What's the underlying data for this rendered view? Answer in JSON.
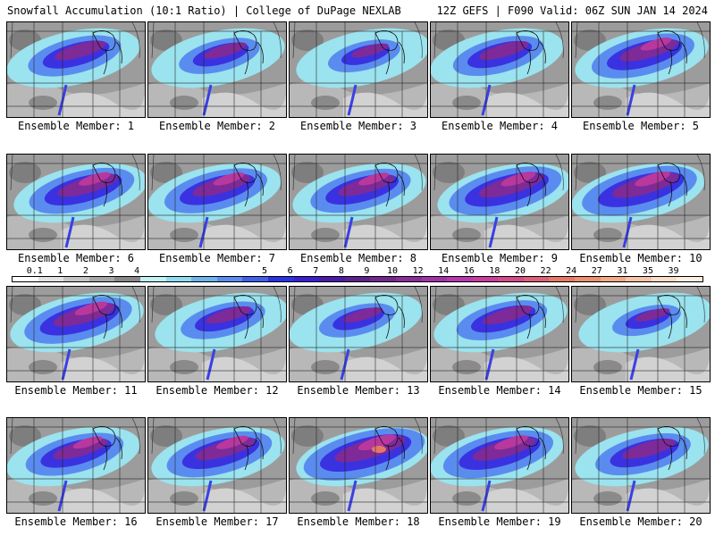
{
  "header": {
    "title_left": "Snowfall Accumulation (10:1 Ratio) | College of DuPage NEXLAB",
    "title_right": "12Z GEFS | F090 Valid: 06Z SUN JAN 14 2024"
  },
  "members": [
    {
      "label": "Ensemble Member: 1",
      "intensity": 0.62
    },
    {
      "label": "Ensemble Member: 2",
      "intensity": 0.52
    },
    {
      "label": "Ensemble Member: 3",
      "intensity": 0.45
    },
    {
      "label": "Ensemble Member: 4",
      "intensity": 0.6
    },
    {
      "label": "Ensemble Member: 5",
      "intensity": 0.7
    },
    {
      "label": "Ensemble Member: 6",
      "intensity": 0.72
    },
    {
      "label": "Ensemble Member: 7",
      "intensity": 0.7
    },
    {
      "label": "Ensemble Member: 8",
      "intensity": 0.68
    },
    {
      "label": "Ensemble Member: 9",
      "intensity": 0.78
    },
    {
      "label": "Ensemble Member: 10",
      "intensity": 0.8
    },
    {
      "label": "Ensemble Member: 11",
      "intensity": 0.74
    },
    {
      "label": "Ensemble Member: 12",
      "intensity": 0.55
    },
    {
      "label": "Ensemble Member: 13",
      "intensity": 0.48
    },
    {
      "label": "Ensemble Member: 14",
      "intensity": 0.6
    },
    {
      "label": "Ensemble Member: 15",
      "intensity": 0.42
    },
    {
      "label": "Ensemble Member: 16",
      "intensity": 0.66
    },
    {
      "label": "Ensemble Member: 17",
      "intensity": 0.72
    },
    {
      "label": "Ensemble Member: 18",
      "intensity": 0.85
    },
    {
      "label": "Ensemble Member: 19",
      "intensity": 0.76
    },
    {
      "label": "Ensemble Member: 20",
      "intensity": 0.64
    }
  ],
  "colorbar": {
    "labels": [
      "0.1",
      "1",
      "2",
      "3",
      "4",
      "5",
      "6",
      "7",
      "8",
      "9",
      "10",
      "12",
      "14",
      "16",
      "18",
      "20",
      "22",
      "24",
      "27",
      "31",
      "35",
      "39"
    ],
    "colors": [
      "#ffffff",
      "#e2e2e2",
      "#c4c4c4",
      "#a6a6a6",
      "#888888",
      "#bff2f2",
      "#8edcef",
      "#6cb4ee",
      "#5a8cf0",
      "#4160ee",
      "#2a32e6",
      "#3a1ed2",
      "#4c1aa8",
      "#5e208e",
      "#74268e",
      "#8a2c9a",
      "#a032a8",
      "#b838b0",
      "#c83e9c",
      "#d24c8a",
      "#dc6078",
      "#e67868",
      "#ec9070",
      "#f2aa88",
      "#f6c4a8",
      "#fadcc8",
      "#fdeee2"
    ]
  }
}
